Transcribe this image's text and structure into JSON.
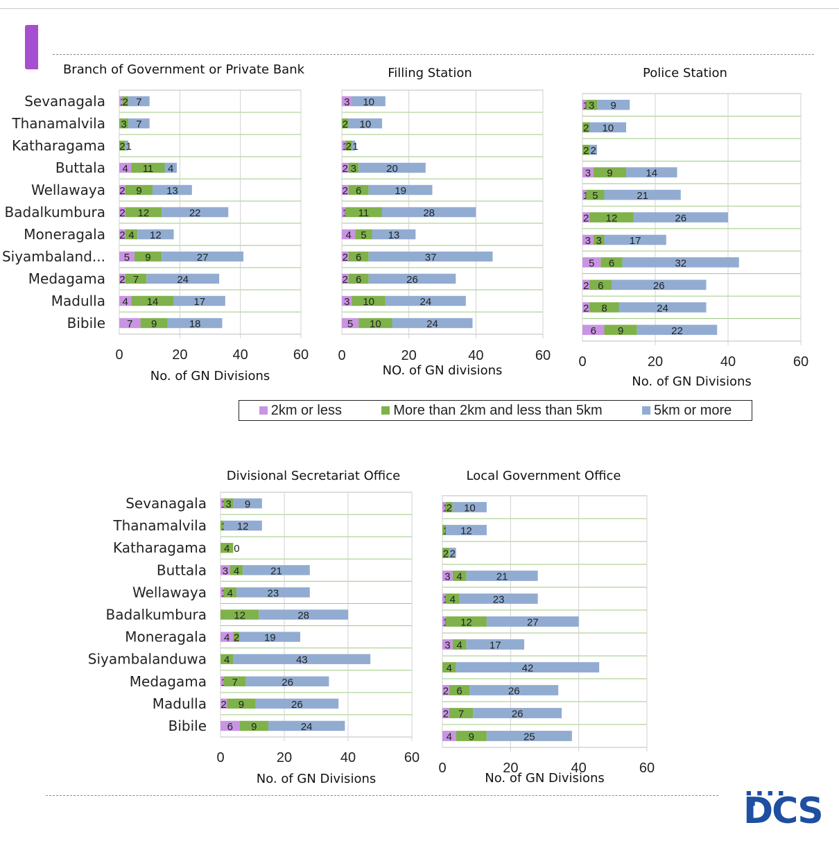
{
  "colors": {
    "le2": "#c994e3",
    "mid": "#7fb24a",
    "ge5": "#92acd1",
    "grid": "#9dc97e",
    "frame": "#bdbdbd"
  },
  "legend": {
    "le2": "2km or less",
    "mid": "More than 2km and less than 5km",
    "ge5": "5km or more"
  },
  "logo": {
    "text": "DCS"
  },
  "chart_data": [
    {
      "type": "bar",
      "title": "Branch of Government or Private Bank",
      "xlabel": "No. of GN Divisions",
      "xlim": [
        0,
        60
      ],
      "xticks": [
        0,
        20,
        40,
        60
      ],
      "categories": [
        "Sevanagala",
        "Thanamalvila",
        "Katharagama",
        "Buttala",
        "Wellawaya",
        "Badalkumbura",
        "Moneragala",
        "Siyambaland...",
        "Medagama",
        "Madulla",
        "Bibile"
      ],
      "series": [
        {
          "name": "2km or less",
          "values": [
            1,
            0,
            0,
            4,
            2,
            2,
            2,
            5,
            2,
            4,
            7
          ]
        },
        {
          "name": "More than 2km and less than 5km",
          "values": [
            2,
            3,
            2,
            11,
            9,
            12,
            4,
            9,
            7,
            14,
            9
          ]
        },
        {
          "name": "5km or more",
          "values": [
            7,
            7,
            1,
            4,
            13,
            22,
            12,
            27,
            24,
            17,
            18
          ]
        }
      ]
    },
    {
      "type": "bar",
      "title": "Filling Station",
      "xlabel": "NO. of GN divisions",
      "xlim": [
        0,
        60
      ],
      "xticks": [
        0,
        20,
        40,
        60
      ],
      "categories": [
        "Sevanagala",
        "Thanamalvila",
        "Katharagama",
        "Buttala",
        "Wellawaya",
        "Badalkumbura",
        "Moneragala",
        "Siyambalanduwa",
        "Medagama",
        "Madulla",
        "Bibile"
      ],
      "series": [
        {
          "name": "2km or less",
          "values": [
            3,
            0,
            1,
            2,
            2,
            1,
            4,
            2,
            2,
            3,
            5
          ]
        },
        {
          "name": "More than 2km and less than 5km",
          "values": [
            0,
            2,
            2,
            3,
            6,
            11,
            5,
            6,
            6,
            10,
            10
          ]
        },
        {
          "name": "5km or more",
          "values": [
            10,
            10,
            1,
            20,
            19,
            28,
            13,
            37,
            26,
            24,
            24
          ]
        }
      ]
    },
    {
      "type": "bar",
      "title": "Police Station",
      "xlabel": "No. of GN Divisions",
      "xlim": [
        0,
        60
      ],
      "xticks": [
        0,
        20,
        40,
        60
      ],
      "categories": [
        "Sevanagala",
        "Thanamalvila",
        "Katharagama",
        "Buttala",
        "Wellawaya",
        "Badalkumbura",
        "Moneragala",
        "Siyambalanduwa",
        "Medagama",
        "Madulla",
        "Bibile"
      ],
      "series": [
        {
          "name": "2km or less",
          "values": [
            1,
            0,
            0,
            3,
            1,
            2,
            3,
            5,
            2,
            2,
            6
          ]
        },
        {
          "name": "More than 2km and less than 5km",
          "values": [
            3,
            2,
            2,
            9,
            5,
            12,
            3,
            6,
            6,
            8,
            9
          ]
        },
        {
          "name": "5km or more",
          "values": [
            9,
            10,
            2,
            14,
            21,
            26,
            17,
            32,
            26,
            24,
            22
          ]
        }
      ]
    },
    {
      "type": "bar",
      "title": "Divisional Secretariat Office",
      "xlabel": "No. of GN Divisions",
      "xlim": [
        0,
        60
      ],
      "xticks": [
        0,
        20,
        40,
        60
      ],
      "categories": [
        "Sevanagala",
        "Thanamalvila",
        "Katharagama",
        "Buttala",
        "Wellawaya",
        "Badalkumbura",
        "Moneragala",
        "Siyambalanduwa",
        "Medagama",
        "Madulla",
        "Bibile"
      ],
      "series": [
        {
          "name": "2km or less",
          "values": [
            1,
            0,
            0,
            3,
            1,
            0,
            4,
            0,
            1,
            2,
            6
          ]
        },
        {
          "name": "More than 2km and less than 5km",
          "values": [
            3,
            1,
            4,
            4,
            4,
            12,
            2,
            4,
            7,
            9,
            9
          ]
        },
        {
          "name": "5km or more",
          "values": [
            9,
            12,
            0,
            21,
            23,
            28,
            19,
            43,
            26,
            26,
            24
          ]
        }
      ]
    },
    {
      "type": "bar",
      "title": "Local Government Office",
      "xlabel": "No. of GN Divisions",
      "xlim": [
        0,
        60
      ],
      "xticks": [
        0,
        20,
        40,
        60
      ],
      "categories": [
        "",
        "",
        "",
        "",
        "",
        "",
        "",
        "",
        "",
        "",
        ""
      ],
      "series": [
        {
          "name": "2km or less",
          "values": [
            1,
            0,
            0,
            3,
            1,
            1,
            3,
            0,
            2,
            2,
            4
          ]
        },
        {
          "name": "More than 2km and less than 5km",
          "values": [
            2,
            1,
            2,
            4,
            4,
            12,
            4,
            4,
            6,
            7,
            9
          ]
        },
        {
          "name": "5km or more",
          "values": [
            10,
            12,
            2,
            21,
            23,
            27,
            17,
            42,
            26,
            26,
            25
          ]
        }
      ]
    }
  ]
}
